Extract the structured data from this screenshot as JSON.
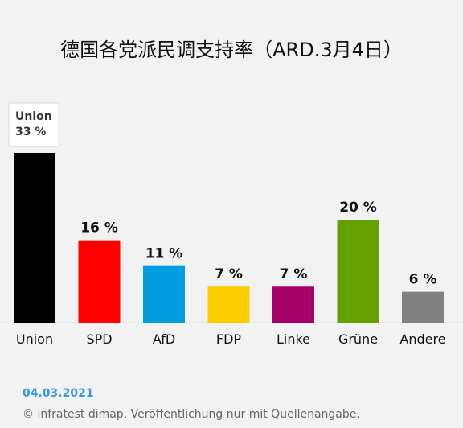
{
  "chart_data": {
    "type": "bar",
    "title": "德国各党派民调支持率（ARD.3月4日）",
    "categories": [
      "Union",
      "SPD",
      "AfD",
      "FDP",
      "Linke",
      "Grüne",
      "Andere"
    ],
    "values": [
      33,
      16,
      11,
      7,
      7,
      20,
      6
    ],
    "value_labels": [
      "33 %",
      "16 %",
      "11 %",
      "7 %",
      "7 %",
      "20 %",
      "6 %"
    ],
    "colors": [
      "#000000",
      "#ff0000",
      "#009ee0",
      "#ffcc00",
      "#a6006b",
      "#64a000",
      "#808080"
    ],
    "ylim": [
      0,
      33
    ],
    "grid": false,
    "legend": "none",
    "tooltip": {
      "category": "Union",
      "value_label": "33 %"
    }
  },
  "footer": {
    "date": "04.03.2021",
    "source": "© infratest dimap. Veröffentlichung nur mit Quellenangabe."
  }
}
